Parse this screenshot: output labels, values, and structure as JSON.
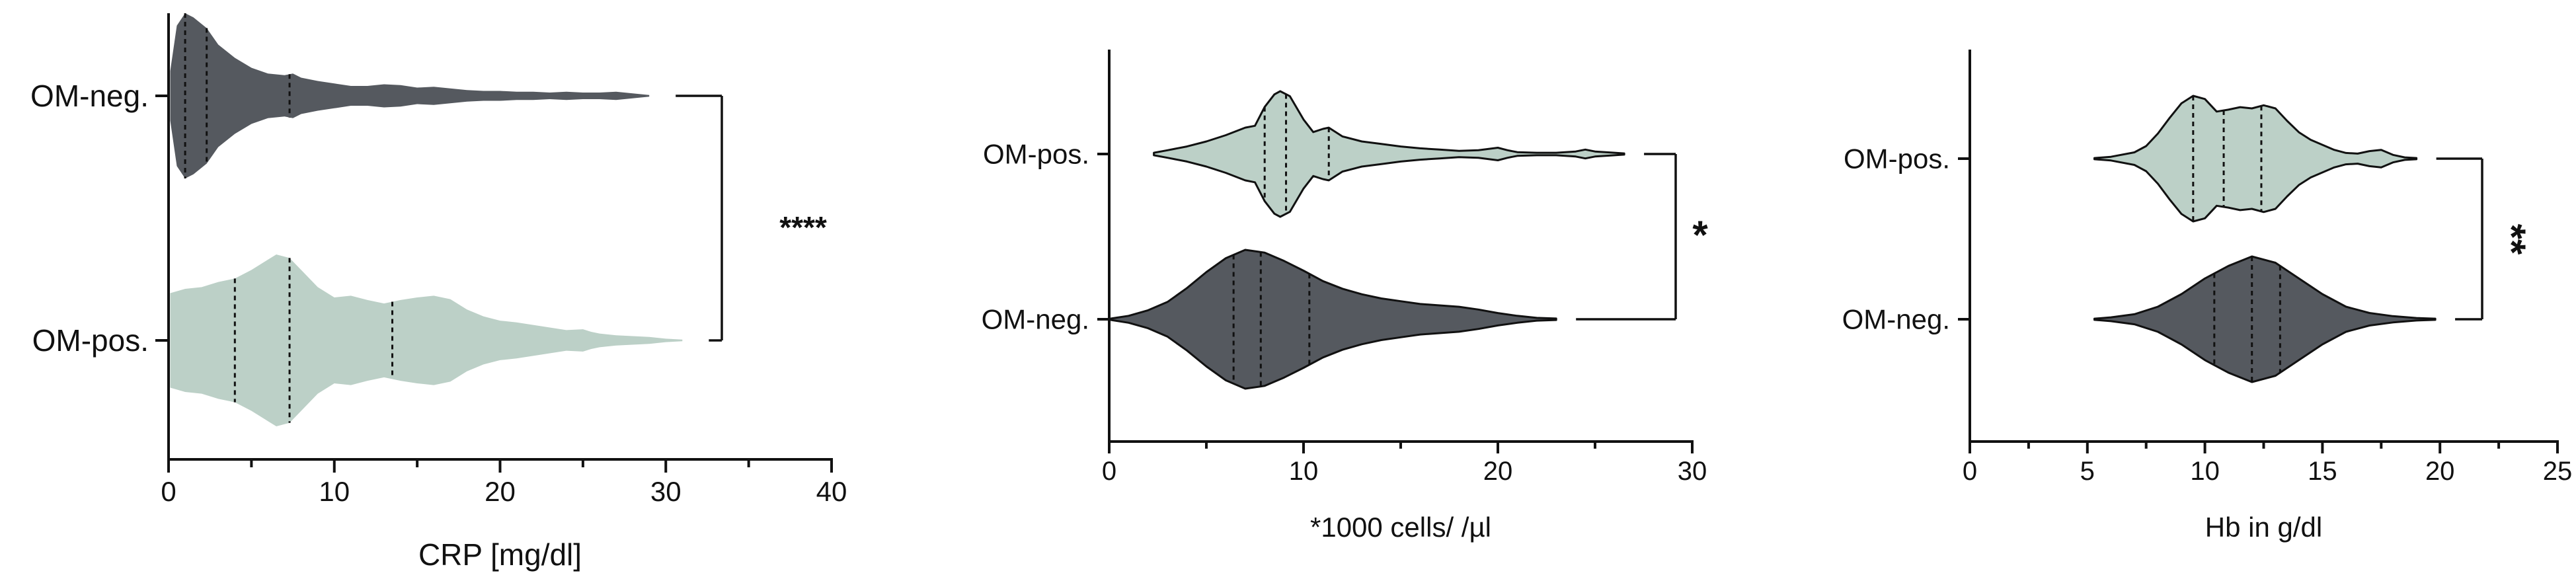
{
  "chart_data": [
    {
      "type": "violin",
      "title": "",
      "xlabel": "CRP [mg/dl]",
      "ylabel": "",
      "xlim": [
        0,
        40
      ],
      "x_ticks": [
        0,
        10,
        20,
        30,
        40
      ],
      "x_tick_labels": [
        "0",
        "10",
        "20",
        "30",
        "40"
      ],
      "categories": [
        "OM-neg.",
        "OM-pos."
      ],
      "series": [
        {
          "category": "OM-neg.",
          "color": "#55595f",
          "outline": false,
          "range": [
            0.1,
            29
          ],
          "quartiles": [
            1.0,
            2.3,
            7.3
          ],
          "density": [
            [
              0.1,
              0.3
            ],
            [
              0.5,
              0.85
            ],
            [
              1.0,
              1.0
            ],
            [
              1.5,
              0.95
            ],
            [
              2.3,
              0.82
            ],
            [
              3.0,
              0.62
            ],
            [
              4.0,
              0.46
            ],
            [
              5.0,
              0.34
            ],
            [
              6.0,
              0.27
            ],
            [
              7.0,
              0.25
            ],
            [
              7.5,
              0.27
            ],
            [
              8.0,
              0.22
            ],
            [
              9.0,
              0.18
            ],
            [
              10.0,
              0.15
            ],
            [
              11.0,
              0.12
            ],
            [
              12.0,
              0.12
            ],
            [
              13.0,
              0.14
            ],
            [
              14.0,
              0.13
            ],
            [
              15.0,
              0.1
            ],
            [
              16.0,
              0.11
            ],
            [
              17.0,
              0.09
            ],
            [
              18.0,
              0.07
            ],
            [
              19.0,
              0.06
            ],
            [
              20.0,
              0.06
            ],
            [
              21.0,
              0.05
            ],
            [
              22.0,
              0.05
            ],
            [
              23.0,
              0.04
            ],
            [
              24.0,
              0.05
            ],
            [
              25.0,
              0.04
            ],
            [
              26.0,
              0.04
            ],
            [
              27.0,
              0.05
            ],
            [
              28.0,
              0.03
            ],
            [
              29.0,
              0.01
            ]
          ]
        },
        {
          "category": "OM-pos.",
          "color": "#bcd0c7",
          "outline": false,
          "range": [
            0.1,
            31
          ],
          "quartiles": [
            4.0,
            7.3,
            13.5
          ],
          "density": [
            [
              0.1,
              0.55
            ],
            [
              1.0,
              0.6
            ],
            [
              2.0,
              0.62
            ],
            [
              3.0,
              0.68
            ],
            [
              4.0,
              0.72
            ],
            [
              5.0,
              0.82
            ],
            [
              6.0,
              0.94
            ],
            [
              6.5,
              1.0
            ],
            [
              7.3,
              0.96
            ],
            [
              8.0,
              0.82
            ],
            [
              9.0,
              0.62
            ],
            [
              10.0,
              0.5
            ],
            [
              11.0,
              0.52
            ],
            [
              12.0,
              0.47
            ],
            [
              13.0,
              0.43
            ],
            [
              13.5,
              0.45
            ],
            [
              14.0,
              0.47
            ],
            [
              15.0,
              0.5
            ],
            [
              16.0,
              0.52
            ],
            [
              17.0,
              0.48
            ],
            [
              18.0,
              0.36
            ],
            [
              19.0,
              0.28
            ],
            [
              20.0,
              0.23
            ],
            [
              21.0,
              0.21
            ],
            [
              22.0,
              0.18
            ],
            [
              23.0,
              0.15
            ],
            [
              24.0,
              0.12
            ],
            [
              25.0,
              0.13
            ],
            [
              25.5,
              0.1
            ],
            [
              26.0,
              0.08
            ],
            [
              27.0,
              0.06
            ],
            [
              28.0,
              0.05
            ],
            [
              29.0,
              0.04
            ],
            [
              30.0,
              0.02
            ],
            [
              31.0,
              0.01
            ]
          ]
        }
      ],
      "significance": "****",
      "grid": false,
      "legend": "none"
    },
    {
      "type": "violin",
      "title": "",
      "xlabel": "*1000 cells/ /µl",
      "ylabel": "",
      "xlim": [
        0,
        30
      ],
      "x_ticks": [
        0,
        10,
        20,
        30
      ],
      "x_tick_labels": [
        "0",
        "10",
        "20",
        "30"
      ],
      "categories": [
        "OM-pos.",
        "OM-neg."
      ],
      "series": [
        {
          "category": "OM-pos.",
          "color": "#bcd0c7",
          "outline": true,
          "range": [
            2.3,
            26.5
          ],
          "quartiles": [
            8.0,
            9.1,
            11.3
          ],
          "density": [
            [
              2.3,
              0.02
            ],
            [
              3.0,
              0.06
            ],
            [
              4.0,
              0.12
            ],
            [
              5.0,
              0.2
            ],
            [
              6.0,
              0.3
            ],
            [
              7.0,
              0.42
            ],
            [
              7.5,
              0.45
            ],
            [
              8.0,
              0.75
            ],
            [
              8.5,
              0.95
            ],
            [
              8.8,
              1.0
            ],
            [
              9.3,
              0.92
            ],
            [
              10.0,
              0.55
            ],
            [
              10.5,
              0.35
            ],
            [
              11.0,
              0.4
            ],
            [
              11.3,
              0.42
            ],
            [
              12.0,
              0.28
            ],
            [
              13.0,
              0.2
            ],
            [
              14.0,
              0.16
            ],
            [
              15.0,
              0.12
            ],
            [
              16.0,
              0.09
            ],
            [
              17.0,
              0.07
            ],
            [
              18.0,
              0.05
            ],
            [
              19.0,
              0.06
            ],
            [
              20.0,
              0.1
            ],
            [
              20.5,
              0.06
            ],
            [
              21.0,
              0.03
            ],
            [
              22.0,
              0.02
            ],
            [
              23.0,
              0.02
            ],
            [
              24.0,
              0.04
            ],
            [
              24.5,
              0.07
            ],
            [
              25.0,
              0.04
            ],
            [
              26.0,
              0.02
            ],
            [
              26.5,
              0.01
            ]
          ]
        },
        {
          "category": "OM-neg.",
          "color": "#55595f",
          "outline": true,
          "range": [
            0.1,
            23
          ],
          "quartiles": [
            6.4,
            7.8,
            10.3
          ],
          "density": [
            [
              0.1,
              0.01
            ],
            [
              1.0,
              0.05
            ],
            [
              2.0,
              0.13
            ],
            [
              3.0,
              0.25
            ],
            [
              4.0,
              0.45
            ],
            [
              5.0,
              0.68
            ],
            [
              6.0,
              0.88
            ],
            [
              7.0,
              1.0
            ],
            [
              8.0,
              0.96
            ],
            [
              9.0,
              0.84
            ],
            [
              10.0,
              0.7
            ],
            [
              11.0,
              0.55
            ],
            [
              12.0,
              0.44
            ],
            [
              13.0,
              0.36
            ],
            [
              14.0,
              0.3
            ],
            [
              15.0,
              0.26
            ],
            [
              16.0,
              0.22
            ],
            [
              17.0,
              0.2
            ],
            [
              18.0,
              0.18
            ],
            [
              19.0,
              0.14
            ],
            [
              20.0,
              0.09
            ],
            [
              21.0,
              0.05
            ],
            [
              22.0,
              0.02
            ],
            [
              23.0,
              0.01
            ]
          ]
        }
      ],
      "significance": "*",
      "grid": false,
      "legend": "none"
    },
    {
      "type": "violin",
      "title": "",
      "xlabel": "Hb in g/dl",
      "ylabel": "",
      "xlim": [
        0,
        25
      ],
      "x_ticks": [
        0,
        5,
        10,
        15,
        20,
        25
      ],
      "x_tick_labels": [
        "0",
        "5",
        "10",
        "15",
        "20",
        "25"
      ],
      "categories": [
        "OM-pos.",
        "OM-neg."
      ],
      "series": [
        {
          "category": "OM-pos.",
          "color": "#bcd0c7",
          "outline": true,
          "range": [
            5.3,
            19
          ],
          "quartiles": [
            9.5,
            10.8,
            12.4
          ],
          "density": [
            [
              5.3,
              0.01
            ],
            [
              6.0,
              0.03
            ],
            [
              7.0,
              0.1
            ],
            [
              7.5,
              0.2
            ],
            [
              8.0,
              0.4
            ],
            [
              8.5,
              0.65
            ],
            [
              9.0,
              0.88
            ],
            [
              9.5,
              1.0
            ],
            [
              10.0,
              0.95
            ],
            [
              10.5,
              0.75
            ],
            [
              11.0,
              0.78
            ],
            [
              11.5,
              0.82
            ],
            [
              12.0,
              0.8
            ],
            [
              12.5,
              0.85
            ],
            [
              13.0,
              0.8
            ],
            [
              13.5,
              0.6
            ],
            [
              14.0,
              0.42
            ],
            [
              14.5,
              0.3
            ],
            [
              15.0,
              0.22
            ],
            [
              15.5,
              0.14
            ],
            [
              16.0,
              0.09
            ],
            [
              16.5,
              0.08
            ],
            [
              17.0,
              0.12
            ],
            [
              17.5,
              0.14
            ],
            [
              18.0,
              0.06
            ],
            [
              18.5,
              0.02
            ],
            [
              19.0,
              0.01
            ]
          ]
        },
        {
          "category": "OM-neg.",
          "color": "#55595f",
          "outline": true,
          "range": [
            5.3,
            19.8
          ],
          "quartiles": [
            10.4,
            12.0,
            13.2
          ],
          "density": [
            [
              5.3,
              0.01
            ],
            [
              6.0,
              0.03
            ],
            [
              7.0,
              0.08
            ],
            [
              8.0,
              0.2
            ],
            [
              9.0,
              0.4
            ],
            [
              10.0,
              0.65
            ],
            [
              11.0,
              0.85
            ],
            [
              12.0,
              1.0
            ],
            [
              13.0,
              0.9
            ],
            [
              14.0,
              0.65
            ],
            [
              15.0,
              0.4
            ],
            [
              16.0,
              0.2
            ],
            [
              17.0,
              0.1
            ],
            [
              18.0,
              0.05
            ],
            [
              19.0,
              0.02
            ],
            [
              19.8,
              0.01
            ]
          ]
        }
      ],
      "significance": "**",
      "grid": false,
      "legend": "none"
    }
  ]
}
